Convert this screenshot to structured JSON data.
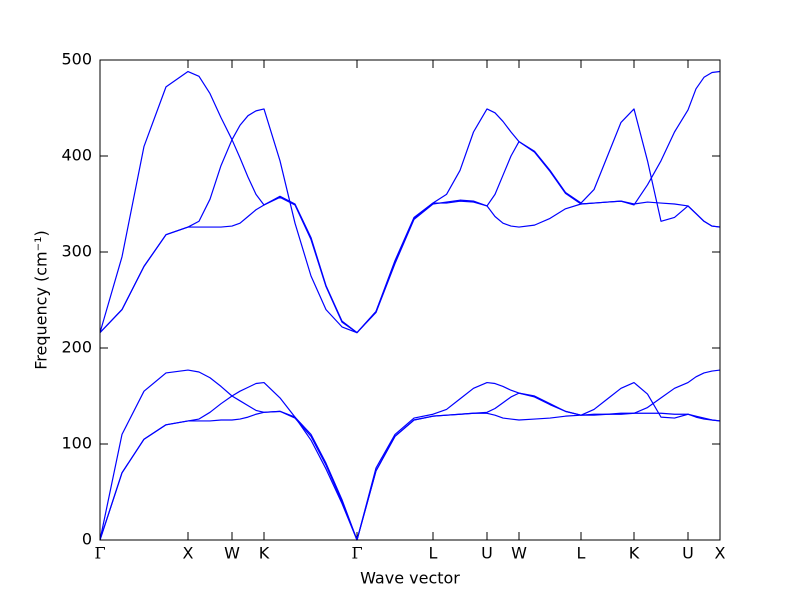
{
  "chart_data": {
    "type": "line",
    "xlabel": "Wave vector",
    "ylabel": "Frequency (cm⁻¹)",
    "x": [
      0,
      0.22,
      0.44,
      0.66,
      0.88,
      0.99,
      1.1,
      1.21,
      1.32,
      1.4,
      1.48,
      1.56,
      1.64,
      1.8,
      1.95,
      2.11,
      2.26,
      2.42,
      2.57,
      2.76,
      2.95,
      3.14,
      3.33,
      3.465,
      3.6,
      3.735,
      3.87,
      3.95,
      4.03,
      4.11,
      4.19,
      4.345,
      4.5,
      4.655,
      4.81,
      4.94,
      5.075,
      5.21,
      5.34,
      5.475,
      5.61,
      5.745,
      5.88,
      5.96,
      6.04,
      6.12,
      6.2
    ],
    "series": [
      {
        "color": "#0000ff",
        "values": [
          0,
          70,
          105,
          120,
          124,
          124,
          124,
          125,
          125,
          126,
          128,
          131,
          133,
          134,
          127,
          108,
          78,
          40,
          0,
          72,
          108,
          125,
          129,
          130,
          131,
          132,
          132,
          130,
          127,
          126,
          125,
          126,
          127,
          129,
          130,
          131,
          131,
          132,
          132,
          132,
          132,
          131,
          131,
          129,
          127,
          125,
          124
        ]
      },
      {
        "color": "#0000ff",
        "values": [
          0,
          70,
          105,
          120,
          124,
          126,
          133,
          142,
          150,
          155,
          159,
          163,
          164,
          148,
          128,
          104,
          74,
          38,
          0,
          72,
          108,
          125,
          129,
          130,
          131,
          132,
          133,
          137,
          143,
          149,
          153,
          149,
          141,
          134,
          130,
          130,
          131,
          131,
          132,
          138,
          148,
          158,
          164,
          170,
          174,
          176,
          177
        ]
      },
      {
        "color": "#0000ff",
        "values": [
          0,
          110,
          155,
          174,
          177,
          175,
          169,
          160,
          150,
          145,
          140,
          135,
          133,
          134,
          128,
          110,
          80,
          42,
          0,
          75,
          110,
          127,
          131,
          136,
          147,
          158,
          164,
          163,
          160,
          156,
          153,
          150,
          142,
          134,
          130,
          136,
          147,
          158,
          164,
          152,
          128,
          127,
          131,
          128,
          126,
          125,
          124
        ]
      },
      {
        "color": "#0000ff",
        "values": [
          216,
          240,
          285,
          318,
          326,
          326,
          326,
          326,
          327,
          330,
          337,
          344,
          349,
          357,
          349,
          313,
          264,
          227,
          216,
          237,
          288,
          334,
          350,
          352,
          354,
          353,
          348,
          337,
          330,
          327,
          326,
          328,
          335,
          345,
          350,
          351,
          352,
          353,
          350,
          352,
          351,
          350,
          348,
          340,
          332,
          327,
          326
        ]
      },
      {
        "color": "#0000ff",
        "values": [
          216,
          240,
          285,
          318,
          326,
          332,
          355,
          390,
          417,
          432,
          442,
          447,
          449,
          395,
          330,
          275,
          240,
          222,
          216,
          238,
          290,
          335,
          351,
          351,
          353,
          352,
          348,
          360,
          380,
          400,
          415,
          404,
          384,
          361,
          350,
          351,
          352,
          353,
          349,
          370,
          395,
          425,
          448,
          470,
          482,
          487,
          488
        ]
      },
      {
        "color": "#0000ff",
        "values": [
          216,
          295,
          410,
          472,
          488,
          483,
          465,
          440,
          417,
          398,
          378,
          360,
          349,
          358,
          350,
          315,
          265,
          228,
          216,
          238,
          291,
          336,
          351,
          360,
          385,
          425,
          449,
          445,
          436,
          425,
          415,
          405,
          385,
          362,
          351,
          365,
          400,
          435,
          449,
          395,
          332,
          336,
          348,
          340,
          332,
          327,
          326
        ]
      }
    ],
    "xlim": [
      0,
      6.2
    ],
    "xticks": [
      {
        "value": 0,
        "label": "Γ"
      },
      {
        "value": 0.88,
        "label": "X"
      },
      {
        "value": 1.32,
        "label": "W"
      },
      {
        "value": 1.64,
        "label": "K"
      },
      {
        "value": 2.57,
        "label": "Γ"
      },
      {
        "value": 3.33,
        "label": "L"
      },
      {
        "value": 3.87,
        "label": "U"
      },
      {
        "value": 4.19,
        "label": "W"
      },
      {
        "value": 4.81,
        "label": "L"
      },
      {
        "value": 5.34,
        "label": "K"
      },
      {
        "value": 5.88,
        "label": "U"
      },
      {
        "value": 6.2,
        "label": "X"
      }
    ],
    "ylim": [
      0,
      500
    ],
    "yticks": [
      0,
      100,
      200,
      300,
      400,
      500
    ],
    "grid": false
  }
}
